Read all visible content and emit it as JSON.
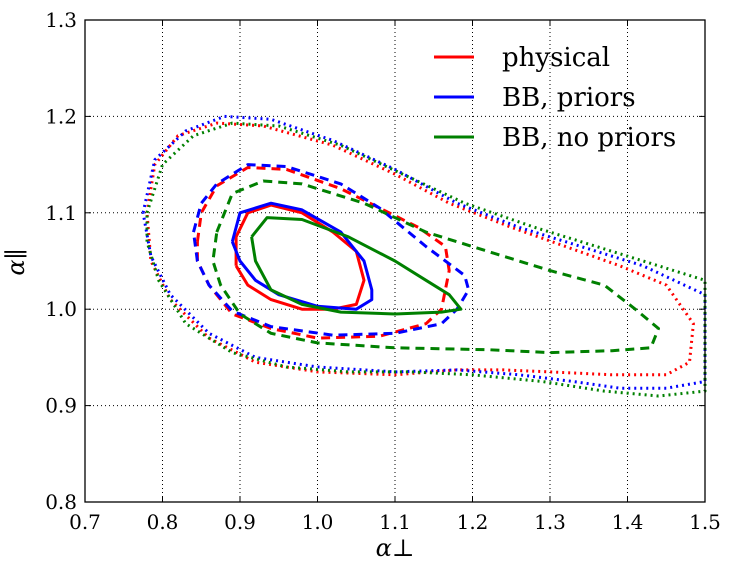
{
  "chart_data": {
    "type": "contour",
    "title": "",
    "xlabel": "α⊥",
    "ylabel": "α∥",
    "xlim": [
      0.7,
      1.5
    ],
    "ylim": [
      0.8,
      1.3
    ],
    "xticks": [
      "0.7",
      "0.8",
      "0.9",
      "1.0",
      "1.1",
      "1.2",
      "1.3",
      "1.4",
      "1.5"
    ],
    "yticks": [
      "0.8",
      "0.9",
      "1.0",
      "1.1",
      "1.2",
      "1.3"
    ],
    "xtick_values": [
      0.7,
      0.8,
      0.9,
      1.0,
      1.1,
      1.2,
      1.3,
      1.4,
      1.5
    ],
    "ytick_values": [
      0.8,
      0.9,
      1.0,
      1.1,
      1.2,
      1.3
    ],
    "grid": true,
    "legend_position": "top-right",
    "legend": [
      {
        "label": "physical",
        "color": "#ff0000"
      },
      {
        "label": "BB, priors",
        "color": "#0000ff"
      },
      {
        "label": "BB, no priors",
        "color": "#008000"
      }
    ],
    "series": [
      {
        "name": "physical",
        "color": "#ff0000",
        "level": "1sigma",
        "style": "solid",
        "points": [
          [
            0.895,
            1.045
          ],
          [
            0.895,
            1.075
          ],
          [
            0.91,
            1.1
          ],
          [
            0.94,
            1.108
          ],
          [
            0.98,
            1.1
          ],
          [
            1.02,
            1.08
          ],
          [
            1.05,
            1.06
          ],
          [
            1.06,
            1.03
          ],
          [
            1.05,
            1.005
          ],
          [
            1.02,
            1.0
          ],
          [
            0.98,
            1.0
          ],
          [
            0.94,
            1.01
          ],
          [
            0.91,
            1.025
          ],
          [
            0.895,
            1.045
          ]
        ]
      },
      {
        "name": "physical",
        "color": "#ff0000",
        "level": "2sigma",
        "style": "dashed",
        "points": [
          [
            0.845,
            1.07
          ],
          [
            0.85,
            1.1
          ],
          [
            0.87,
            1.128
          ],
          [
            0.91,
            1.147
          ],
          [
            0.96,
            1.145
          ],
          [
            1.03,
            1.125
          ],
          [
            1.08,
            1.105
          ],
          [
            1.13,
            1.085
          ],
          [
            1.165,
            1.065
          ],
          [
            1.17,
            1.04
          ],
          [
            1.16,
            1.0
          ],
          [
            1.14,
            0.985
          ],
          [
            1.08,
            0.972
          ],
          [
            1.0,
            0.97
          ],
          [
            0.94,
            0.98
          ],
          [
            0.89,
            0.995
          ],
          [
            0.86,
            1.025
          ],
          [
            0.845,
            1.05
          ],
          [
            0.845,
            1.07
          ]
        ]
      },
      {
        "name": "physical",
        "color": "#ff0000",
        "level": "3sigma",
        "style": "dotted",
        "points": [
          [
            0.78,
            1.1
          ],
          [
            0.79,
            1.15
          ],
          [
            0.82,
            1.18
          ],
          [
            0.87,
            1.193
          ],
          [
            0.93,
            1.19
          ],
          [
            1.02,
            1.17
          ],
          [
            1.1,
            1.14
          ],
          [
            1.17,
            1.11
          ],
          [
            1.25,
            1.085
          ],
          [
            1.32,
            1.065
          ],
          [
            1.39,
            1.045
          ],
          [
            1.45,
            1.025
          ],
          [
            1.485,
            0.985
          ],
          [
            1.48,
            0.945
          ],
          [
            1.45,
            0.932
          ],
          [
            1.38,
            0.932
          ],
          [
            1.3,
            0.935
          ],
          [
            1.24,
            0.937
          ],
          [
            1.18,
            0.937
          ],
          [
            1.1,
            0.932
          ],
          [
            1.0,
            0.935
          ],
          [
            0.92,
            0.945
          ],
          [
            0.86,
            0.97
          ],
          [
            0.81,
            1.01
          ],
          [
            0.785,
            1.05
          ],
          [
            0.78,
            1.1
          ]
        ]
      },
      {
        "name": "BB, priors",
        "color": "#0000ff",
        "level": "1sigma",
        "style": "solid",
        "points": [
          [
            0.89,
            1.07
          ],
          [
            0.9,
            1.1
          ],
          [
            0.94,
            1.11
          ],
          [
            0.98,
            1.103
          ],
          [
            1.03,
            1.08
          ],
          [
            1.06,
            1.05
          ],
          [
            1.07,
            1.02
          ],
          [
            1.07,
            1.01
          ],
          [
            1.05,
            1.0
          ],
          [
            1.0,
            1.003
          ],
          [
            0.95,
            1.015
          ],
          [
            0.92,
            1.03
          ],
          [
            0.9,
            1.05
          ],
          [
            0.89,
            1.07
          ]
        ]
      },
      {
        "name": "BB, priors",
        "color": "#0000ff",
        "level": "2sigma",
        "style": "dashed",
        "points": [
          [
            0.84,
            1.08
          ],
          [
            0.85,
            1.11
          ],
          [
            0.87,
            1.13
          ],
          [
            0.91,
            1.15
          ],
          [
            0.96,
            1.148
          ],
          [
            1.03,
            1.13
          ],
          [
            1.08,
            1.105
          ],
          [
            1.14,
            1.065
          ],
          [
            1.19,
            1.035
          ],
          [
            1.195,
            1.02
          ],
          [
            1.18,
            1.0
          ],
          [
            1.16,
            0.985
          ],
          [
            1.1,
            0.975
          ],
          [
            1.02,
            0.973
          ],
          [
            0.94,
            0.982
          ],
          [
            0.89,
            0.998
          ],
          [
            0.86,
            1.025
          ],
          [
            0.845,
            1.05
          ],
          [
            0.84,
            1.08
          ]
        ]
      },
      {
        "name": "BB, priors",
        "color": "#0000ff",
        "level": "3sigma",
        "style": "dotted",
        "points": [
          [
            0.775,
            1.1
          ],
          [
            0.79,
            1.155
          ],
          [
            0.83,
            1.185
          ],
          [
            0.88,
            1.2
          ],
          [
            0.94,
            1.197
          ],
          [
            1.02,
            1.175
          ],
          [
            1.1,
            1.145
          ],
          [
            1.18,
            1.11
          ],
          [
            1.26,
            1.085
          ],
          [
            1.34,
            1.065
          ],
          [
            1.42,
            1.045
          ],
          [
            1.5,
            1.015
          ],
          [
            1.5,
            0.925
          ],
          [
            1.45,
            0.918
          ],
          [
            1.39,
            0.918
          ],
          [
            1.33,
            0.925
          ],
          [
            1.26,
            0.932
          ],
          [
            1.18,
            0.937
          ],
          [
            1.1,
            0.935
          ],
          [
            1.0,
            0.94
          ],
          [
            0.92,
            0.95
          ],
          [
            0.86,
            0.975
          ],
          [
            0.81,
            1.015
          ],
          [
            0.785,
            1.055
          ],
          [
            0.775,
            1.1
          ]
        ]
      },
      {
        "name": "BB, no priors",
        "color": "#008000",
        "level": "1sigma",
        "style": "solid",
        "points": [
          [
            0.915,
            1.075
          ],
          [
            0.935,
            1.095
          ],
          [
            0.98,
            1.093
          ],
          [
            1.04,
            1.075
          ],
          [
            1.1,
            1.05
          ],
          [
            1.14,
            1.03
          ],
          [
            1.17,
            1.015
          ],
          [
            1.185,
            1.0
          ],
          [
            1.16,
            0.997
          ],
          [
            1.1,
            0.995
          ],
          [
            1.03,
            0.997
          ],
          [
            0.98,
            1.005
          ],
          [
            0.94,
            1.02
          ],
          [
            0.92,
            1.05
          ],
          [
            0.915,
            1.075
          ]
        ]
      },
      {
        "name": "BB, no priors",
        "color": "#008000",
        "level": "2sigma",
        "style": "dashed",
        "points": [
          [
            0.87,
            1.08
          ],
          [
            0.89,
            1.12
          ],
          [
            0.93,
            1.133
          ],
          [
            0.98,
            1.13
          ],
          [
            1.06,
            1.11
          ],
          [
            1.14,
            1.08
          ],
          [
            1.22,
            1.06
          ],
          [
            1.3,
            1.04
          ],
          [
            1.37,
            1.025
          ],
          [
            1.41,
            1.0
          ],
          [
            1.44,
            0.98
          ],
          [
            1.43,
            0.96
          ],
          [
            1.38,
            0.957
          ],
          [
            1.3,
            0.955
          ],
          [
            1.22,
            0.958
          ],
          [
            1.1,
            0.96
          ],
          [
            1.0,
            0.965
          ],
          [
            0.94,
            0.975
          ],
          [
            0.9,
            0.995
          ],
          [
            0.875,
            1.025
          ],
          [
            0.865,
            1.05
          ],
          [
            0.87,
            1.08
          ]
        ]
      },
      {
        "name": "BB, no priors",
        "color": "#008000",
        "level": "3sigma",
        "style": "dotted",
        "points": [
          [
            0.78,
            1.1
          ],
          [
            0.8,
            1.15
          ],
          [
            0.84,
            1.18
          ],
          [
            0.89,
            1.193
          ],
          [
            0.95,
            1.19
          ],
          [
            1.03,
            1.17
          ],
          [
            1.11,
            1.14
          ],
          [
            1.19,
            1.11
          ],
          [
            1.28,
            1.085
          ],
          [
            1.36,
            1.065
          ],
          [
            1.44,
            1.045
          ],
          [
            1.5,
            1.03
          ],
          [
            1.5,
            0.915
          ],
          [
            1.44,
            0.91
          ],
          [
            1.37,
            0.915
          ],
          [
            1.29,
            0.925
          ],
          [
            1.2,
            0.932
          ],
          [
            1.12,
            0.935
          ],
          [
            1.04,
            0.935
          ],
          [
            0.96,
            0.94
          ],
          [
            0.89,
            0.955
          ],
          [
            0.83,
            0.985
          ],
          [
            0.795,
            1.03
          ],
          [
            0.78,
            1.07
          ],
          [
            0.78,
            1.1
          ]
        ]
      }
    ]
  }
}
